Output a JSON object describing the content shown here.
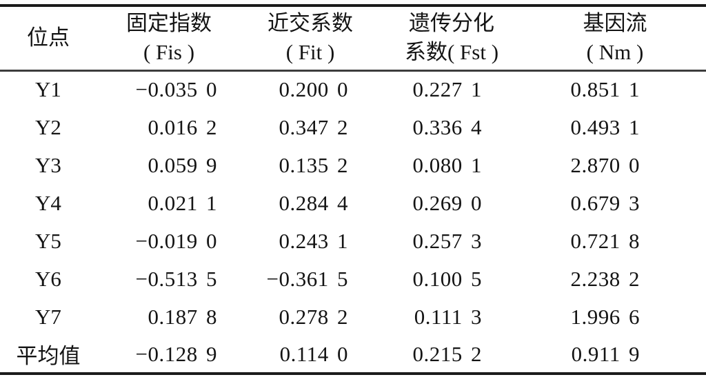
{
  "table": {
    "headers": [
      {
        "line1": "位点",
        "line2": ""
      },
      {
        "line1": "固定指数",
        "line2": "( Fis )"
      },
      {
        "line1": "近交系数",
        "line2": "( Fit )"
      },
      {
        "line1": "遗传分化",
        "line2": "系数( Fst )"
      },
      {
        "line1": "基因流",
        "line2": "( Nm )"
      }
    ],
    "rows": [
      {
        "locus": "Y1",
        "fis": "−0.035 0",
        "fit": "0.200 0",
        "fst": "0.227 1",
        "nm": "0.851 1"
      },
      {
        "locus": "Y2",
        "fis": "0.016 2",
        "fit": "0.347 2",
        "fst": "0.336 4",
        "nm": "0.493 1"
      },
      {
        "locus": "Y3",
        "fis": "0.059 9",
        "fit": "0.135 2",
        "fst": "0.080 1",
        "nm": "2.870 0"
      },
      {
        "locus": "Y4",
        "fis": "0.021 1",
        "fit": "0.284 4",
        "fst": "0.269 0",
        "nm": "0.679 3"
      },
      {
        "locus": "Y5",
        "fis": "−0.019 0",
        "fit": "0.243 1",
        "fst": "0.257 3",
        "nm": "0.721 8"
      },
      {
        "locus": "Y6",
        "fis": "−0.513 5",
        "fit": "−0.361 5",
        "fst": "0.100 5",
        "nm": "2.238 2"
      },
      {
        "locus": "Y7",
        "fis": "0.187 8",
        "fit": "0.278 2",
        "fst": "0.111 3",
        "nm": "1.996 6"
      },
      {
        "locus": "平均值",
        "fis": "−0.128 9",
        "fit": "0.114 0",
        "fst": "0.215 2",
        "nm": "0.911 9"
      }
    ]
  },
  "chart_data": {
    "type": "table",
    "columns": [
      "位点",
      "固定指数(Fis)",
      "近交系数(Fit)",
      "遗传分化系数(Fst)",
      "基因流(Nm)"
    ],
    "rows": [
      [
        "Y1",
        -0.035,
        0.2,
        0.2271,
        0.8511
      ],
      [
        "Y2",
        0.0162,
        0.3472,
        0.3364,
        0.4931
      ],
      [
        "Y3",
        0.0599,
        0.1352,
        0.0801,
        2.87
      ],
      [
        "Y4",
        0.0211,
        0.2844,
        0.269,
        0.6793
      ],
      [
        "Y5",
        -0.019,
        0.2431,
        0.2573,
        0.7218
      ],
      [
        "Y6",
        -0.5135,
        -0.3615,
        0.1005,
        2.2382
      ],
      [
        "Y7",
        0.1878,
        0.2782,
        0.1113,
        1.9966
      ],
      [
        "平均值",
        -0.1289,
        0.114,
        0.2152,
        0.9119
      ]
    ]
  },
  "colors": {
    "background": "#ffffff",
    "text": "#141414",
    "rule_heavy": "#1b1b1b",
    "rule_light": "#3c3c3c"
  }
}
